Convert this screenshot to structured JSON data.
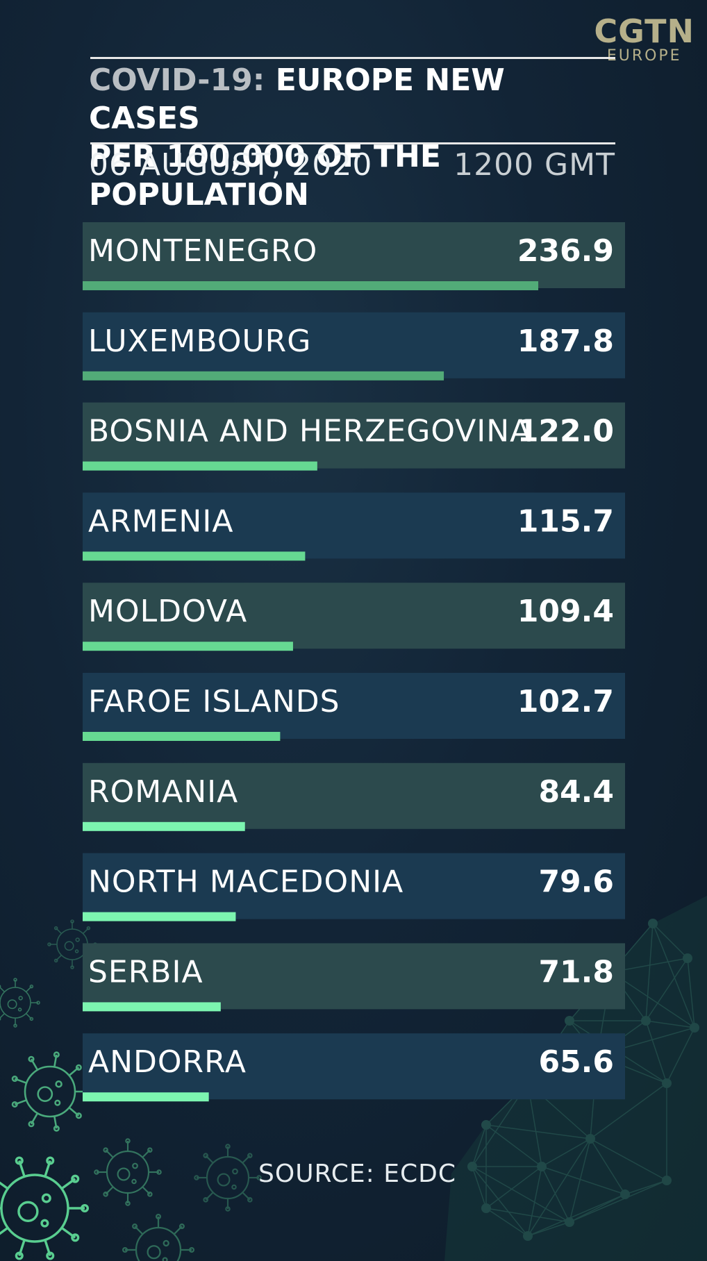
{
  "logo": {
    "main": "CGTN",
    "sub": "EUROPE"
  },
  "title": {
    "highlight": "COVID-19:",
    "line1": "EUROPE NEW CASES",
    "line2": "PER 100,000 OF THE POPULATION"
  },
  "date": "06 AUGUST, 2020",
  "time": "1200 GMT",
  "source": "SOURCE: ECDC",
  "colors": {
    "row_a": "#2c4a4d",
    "row_b": "#1b3a51",
    "bar_high": "#52ab78",
    "bar_mid": "#66d992",
    "bar_low": "#7cf5b0"
  },
  "chart_data": {
    "type": "bar",
    "orientation": "horizontal",
    "categories": [
      "MONTENEGRO",
      "LUXEMBOURG",
      "BOSNIA AND HERZEGOVINA",
      "ARMENIA",
      "MOLDOVA",
      "FAROE ISLANDS",
      "ROMANIA",
      "NORTH MACEDONIA",
      "SERBIA",
      "ANDORRA"
    ],
    "values": [
      236.9,
      187.8,
      122.0,
      115.7,
      109.4,
      102.7,
      84.4,
      79.6,
      71.8,
      65.6
    ],
    "value_labels": [
      "236.9",
      "187.8",
      "122.0",
      "115.7",
      "109.4",
      "102.7",
      "84.4",
      "79.6",
      "71.8",
      "65.6"
    ],
    "title": "COVID-19: EUROPE NEW CASES PER 100,000 OF THE POPULATION",
    "xlim": [
      0,
      260
    ],
    "grid": false,
    "legend": "none"
  }
}
